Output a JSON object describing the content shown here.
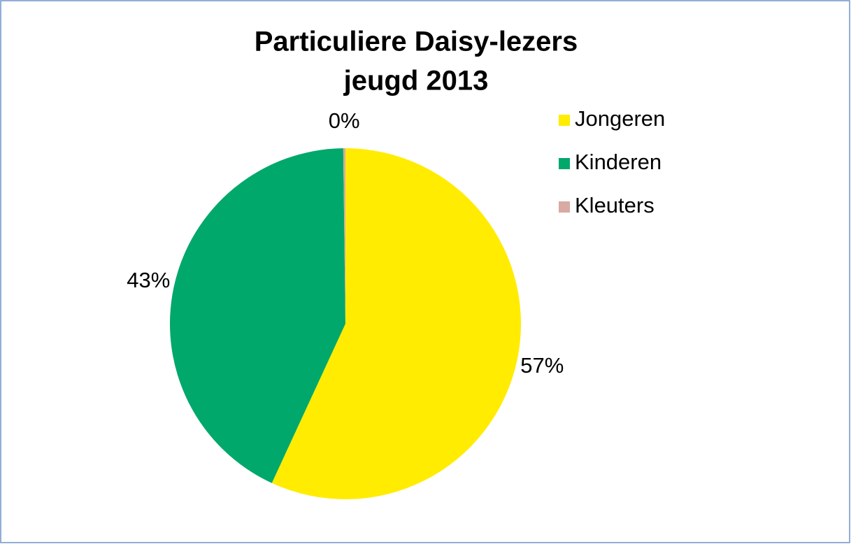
{
  "chart_data": {
    "type": "pie",
    "title": "Particuliere Daisy-lezers",
    "subtitle": "jeugd 2013",
    "categories": [
      "Jongeren",
      "Kinderen",
      "Kleuters"
    ],
    "values": [
      57,
      43,
      0.2
    ],
    "value_labels": [
      "57%",
      "43%",
      "0%"
    ],
    "colors": [
      "#ffec00",
      "#00a86b",
      "#d9a9a3"
    ],
    "legend": "right"
  }
}
